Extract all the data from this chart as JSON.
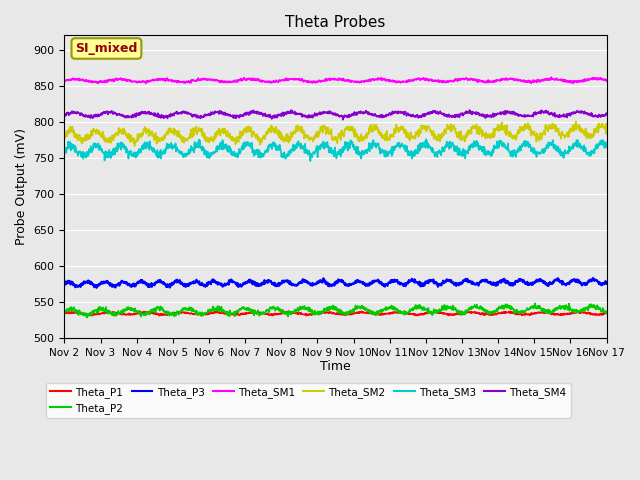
{
  "title": "Theta Probes",
  "xlabel": "Time",
  "ylabel": "Probe Output (mV)",
  "ylim": [
    500,
    920
  ],
  "yticks": [
    500,
    550,
    600,
    650,
    700,
    750,
    800,
    850,
    900
  ],
  "x_days": 15,
  "x_tick_positions": [
    0,
    1,
    2,
    3,
    4,
    5,
    6,
    7,
    8,
    9,
    10,
    11,
    12,
    13,
    14,
    15
  ],
  "x_labels": [
    "Nov 2",
    "Nov 3",
    "Nov 4",
    "Nov 5",
    "Nov 6",
    "Nov 7",
    "Nov 8",
    "Nov 9",
    "Nov 10",
    "Nov 11",
    "Nov 12",
    "Nov 13",
    "Nov 14",
    "Nov 15",
    "Nov 16",
    "Nov 17"
  ],
  "series": {
    "Theta_P1": {
      "color": "#ff0000",
      "base": 534,
      "amp": 1.5,
      "period": 1.0,
      "trend": 0.0
    },
    "Theta_P2": {
      "color": "#00cc00",
      "base": 536,
      "amp": 4.0,
      "period": 0.8,
      "trend": 0.3
    },
    "Theta_P3": {
      "color": "#0000ff",
      "base": 575,
      "amp": 3.0,
      "period": 0.5,
      "trend": 0.2
    },
    "Theta_SM1": {
      "color": "#ff00ff",
      "base": 857,
      "amp": 2.0,
      "period": 1.2,
      "trend": 0.05
    },
    "Theta_SM2": {
      "color": "#cccc00",
      "base": 780,
      "amp": 7.0,
      "period": 0.7,
      "trend": 0.5
    },
    "Theta_SM3": {
      "color": "#00cccc",
      "base": 760,
      "amp": 7.0,
      "period": 0.7,
      "trend": 0.2
    },
    "Theta_SM4": {
      "color": "#8800cc",
      "base": 810,
      "amp": 3.0,
      "period": 1.0,
      "trend": 0.05
    }
  },
  "annotation_text": "SI_mixed",
  "annotation_color": "#990000",
  "annotation_bg": "#ffff99",
  "annotation_border": "#999900",
  "bg_color": "#e8e8e8",
  "plot_bg_color": "#e8e8e8",
  "legend_order": [
    "Theta_P1",
    "Theta_P2",
    "Theta_P3",
    "Theta_SM1",
    "Theta_SM2",
    "Theta_SM3",
    "Theta_SM4"
  ]
}
